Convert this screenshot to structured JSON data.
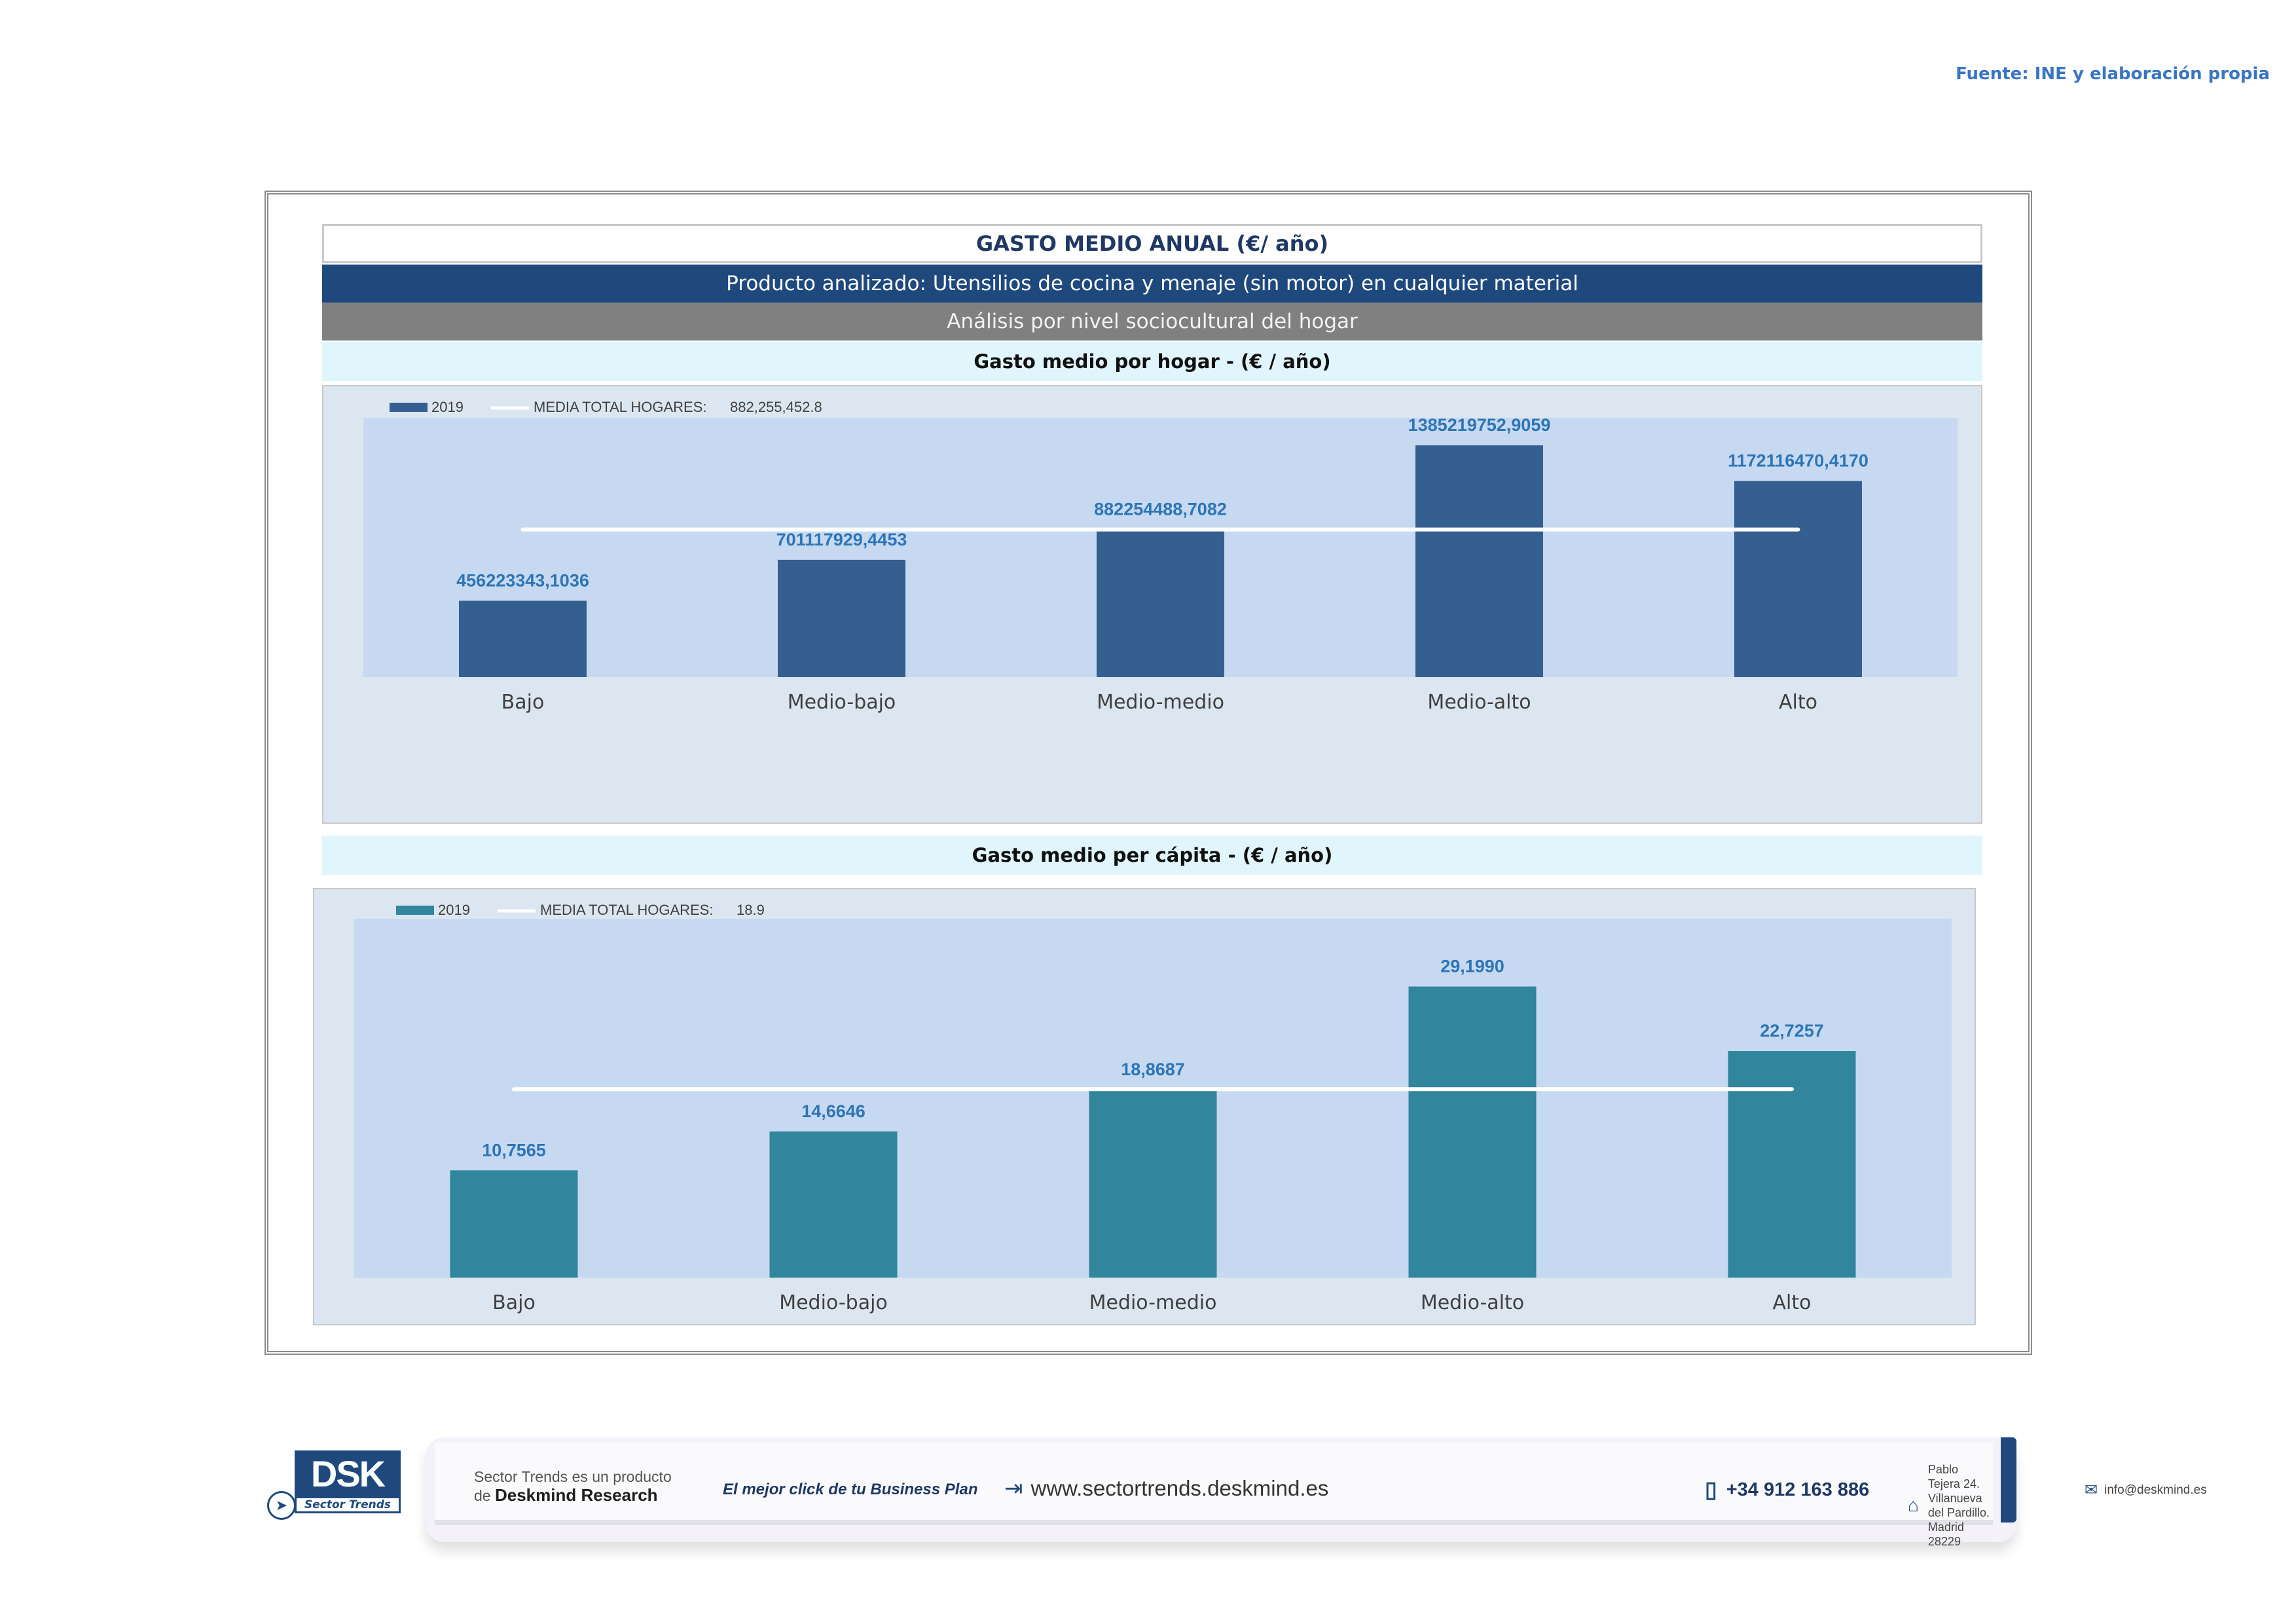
{
  "source": "Fuente: INE y elaboración propia",
  "header": {
    "title": "GASTO MEDIO ANUAL (€/ año)",
    "product": "Producto analizado: Utensilios de cocina y menaje (sin motor) en cualquier material",
    "analysis": "Análisis por nivel sociocultural del hogar"
  },
  "colors": {
    "bar_hogar": "#365f91",
    "bar_capita": "#31859c",
    "plot_bg": "#c6d9f0",
    "outer_bg": "#dce6f1",
    "label": "#2e75b6"
  },
  "chart_data": [
    {
      "type": "bar",
      "title": "Gasto medio por hogar -  (€ / año)",
      "categories": [
        "Bajo",
        "Medio-bajo",
        "Medio-medio",
        "Medio-alto",
        "Alto"
      ],
      "series": [
        {
          "name": "2019",
          "values": [
            456223343.1036,
            701117929.4453,
            882254488.7082,
            1385219752.9059,
            1172116470.417
          ]
        }
      ],
      "data_labels": [
        "456223343,1036",
        "701117929,4453",
        "882254488,7082",
        "1385219752,9059",
        "1172116470,4170"
      ],
      "reference_line": {
        "label": "MEDIA TOTAL  HOGARES:",
        "value_text": "882,255,452.8",
        "value": 882255452.8
      },
      "ylim": [
        0,
        1550000000
      ],
      "grid": false,
      "legend": "top-left"
    },
    {
      "type": "bar",
      "title": "Gasto medio per cápita -  (€ / año)",
      "categories": [
        "Bajo",
        "Medio-bajo",
        "Medio-medio",
        "Medio-alto",
        "Alto"
      ],
      "series": [
        {
          "name": "2019",
          "values": [
            10.7565,
            14.6646,
            18.8687,
            29.199,
            22.7257
          ]
        }
      ],
      "data_labels": [
        "10,7565",
        "14,6646",
        "18,8687",
        "29,1990",
        "22,7257"
      ],
      "reference_line": {
        "label": "MEDIA TOTAL  HOGARES:",
        "value_text": "18.9",
        "value": 18.9
      },
      "ylim": [
        0,
        36
      ],
      "grid": false,
      "legend": "top-left"
    }
  ],
  "footer": {
    "logo_text": "DSK",
    "logo_sub": "Sector Trends",
    "intro_line1": "Sector Trends es un producto",
    "intro_de": "de ",
    "intro_brand": "Deskmind Research",
    "slogan": "El mejor click de tu Business Plan",
    "website": "www.sectortrends.deskmind.es",
    "phone": "+34 912 163 886",
    "address_line1": "Pablo Tejera 24.",
    "address_line2": "Villanueva del Pardillo.",
    "address_line3": "Madrid 28229",
    "email": "info@deskmind.es"
  }
}
